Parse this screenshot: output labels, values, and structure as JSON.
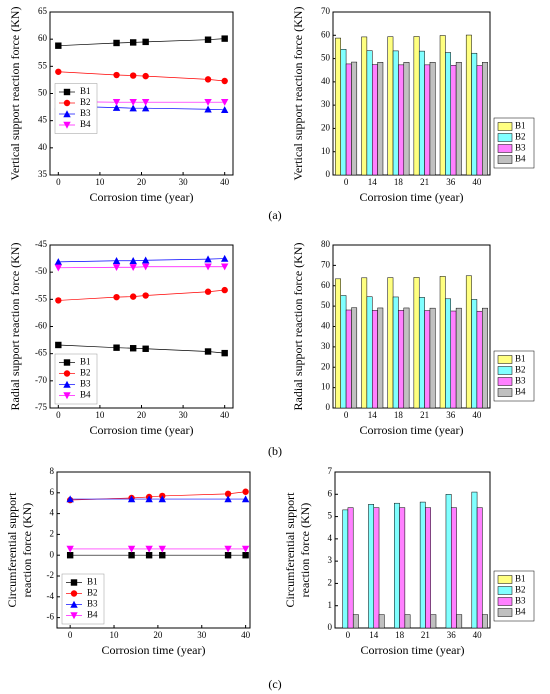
{
  "panel_labels": [
    "(a)",
    "(b)",
    "(c)"
  ],
  "chart_data": [
    {
      "type": "line",
      "ylabel": "Vertical support reaction force (KN)",
      "xlabel": "Corrosion time (year)",
      "x": [
        0,
        14,
        18,
        21,
        36,
        40
      ],
      "xlim": [
        -2,
        42
      ],
      "xticks": [
        0,
        10,
        20,
        30,
        40
      ],
      "ylim": [
        35,
        65
      ],
      "yticks": [
        35,
        40,
        45,
        50,
        55,
        60,
        65
      ],
      "legend": "center left",
      "series": [
        {
          "name": "B1",
          "color": "#000000",
          "marker": "square",
          "values": [
            58.8,
            59.3,
            59.4,
            59.5,
            59.9,
            60.1
          ]
        },
        {
          "name": "B2",
          "color": "#ff0000",
          "marker": "circle",
          "values": [
            54.0,
            53.4,
            53.3,
            53.2,
            52.6,
            52.3
          ]
        },
        {
          "name": "B3",
          "color": "#0000ff",
          "marker": "triangle-up",
          "values": [
            47.7,
            47.4,
            47.3,
            47.3,
            47.1,
            47.0
          ]
        },
        {
          "name": "B4",
          "color": "#ff00ff",
          "marker": "triangle-down",
          "values": [
            48.5,
            48.4,
            48.4,
            48.4,
            48.4,
            48.4
          ]
        }
      ]
    },
    {
      "type": "bar",
      "ylabel": "Vertical support reaction force (KN)",
      "xlabel": "Corrosion time (year)",
      "categories": [
        "0",
        "14",
        "18",
        "21",
        "36",
        "40"
      ],
      "ylim": [
        0,
        70
      ],
      "yticks": [
        0,
        10,
        20,
        30,
        40,
        50,
        60,
        70
      ],
      "legend": "outside lower right",
      "series": [
        {
          "name": "B1",
          "color": "#ffff80",
          "values": [
            58.8,
            59.3,
            59.4,
            59.5,
            59.9,
            60.1
          ]
        },
        {
          "name": "B2",
          "color": "#80ffff",
          "values": [
            54.0,
            53.4,
            53.3,
            53.2,
            52.6,
            52.3
          ]
        },
        {
          "name": "B3",
          "color": "#ff80ff",
          "values": [
            47.7,
            47.4,
            47.3,
            47.3,
            47.1,
            47.0
          ]
        },
        {
          "name": "B4",
          "color": "#c0c0c0",
          "values": [
            48.5,
            48.4,
            48.4,
            48.4,
            48.4,
            48.4
          ]
        }
      ]
    },
    {
      "type": "line",
      "ylabel": "Radial support reaction force (KN)",
      "xlabel": "Corrosion time (year)",
      "x": [
        0,
        14,
        18,
        21,
        36,
        40
      ],
      "xlim": [
        -2,
        42
      ],
      "xticks": [
        0,
        10,
        20,
        30,
        40
      ],
      "ylim": [
        -75,
        -45
      ],
      "yticks": [
        -75,
        -70,
        -65,
        -60,
        -55,
        -50,
        -45
      ],
      "legend": "lower left",
      "series": [
        {
          "name": "B1",
          "color": "#000000",
          "marker": "square",
          "values": [
            -63.4,
            -63.9,
            -64.0,
            -64.1,
            -64.6,
            -64.9
          ]
        },
        {
          "name": "B2",
          "color": "#ff0000",
          "marker": "circle",
          "values": [
            -55.2,
            -54.6,
            -54.5,
            -54.3,
            -53.6,
            -53.3
          ]
        },
        {
          "name": "B3",
          "color": "#0000ff",
          "marker": "triangle-up",
          "values": [
            -48.1,
            -47.9,
            -47.9,
            -47.8,
            -47.6,
            -47.5
          ]
        },
        {
          "name": "B4",
          "color": "#ff00ff",
          "marker": "triangle-down",
          "values": [
            -49.2,
            -49.1,
            -49.1,
            -49.0,
            -49.0,
            -49.0
          ]
        }
      ]
    },
    {
      "type": "bar",
      "ylabel": "Radial support reaction force (KN)",
      "xlabel": "Corrosion time (year)",
      "categories": [
        "0",
        "14",
        "18",
        "21",
        "36",
        "40"
      ],
      "ylim": [
        0,
        80
      ],
      "yticks": [
        0,
        10,
        20,
        30,
        40,
        50,
        60,
        70,
        80
      ],
      "legend": "outside lower right",
      "series": [
        {
          "name": "B1",
          "color": "#ffff80",
          "values": [
            63.4,
            63.9,
            64.0,
            64.1,
            64.6,
            64.9
          ]
        },
        {
          "name": "B2",
          "color": "#80ffff",
          "values": [
            55.2,
            54.6,
            54.5,
            54.3,
            53.6,
            53.3
          ]
        },
        {
          "name": "B3",
          "color": "#ff80ff",
          "values": [
            48.1,
            47.9,
            47.9,
            47.8,
            47.6,
            47.5
          ]
        },
        {
          "name": "B4",
          "color": "#c0c0c0",
          "values": [
            49.2,
            49.1,
            49.1,
            49.0,
            49.0,
            49.0
          ]
        }
      ]
    },
    {
      "type": "line",
      "ylabel": [
        "Circumferential support",
        "reaction force (KN)"
      ],
      "xlabel": "Corrosion time (year)",
      "x": [
        0,
        14,
        18,
        21,
        36,
        40
      ],
      "xlim": [
        -3,
        41
      ],
      "xticks": [
        0,
        10,
        20,
        30,
        40
      ],
      "ylim": [
        -7,
        8
      ],
      "yticks": [
        -6,
        -4,
        -2,
        0,
        2,
        4,
        6,
        8
      ],
      "legend": "lower left",
      "series": [
        {
          "name": "B1",
          "color": "#000000",
          "marker": "square",
          "values": [
            0,
            0,
            0,
            0,
            0,
            0
          ]
        },
        {
          "name": "B2",
          "color": "#ff0000",
          "marker": "circle",
          "values": [
            5.3,
            5.5,
            5.6,
            5.7,
            5.9,
            6.1
          ]
        },
        {
          "name": "B3",
          "color": "#0000ff",
          "marker": "triangle-up",
          "values": [
            5.4,
            5.4,
            5.4,
            5.4,
            5.4,
            5.4
          ]
        },
        {
          "name": "B4",
          "color": "#ff00ff",
          "marker": "triangle-down",
          "values": [
            0.6,
            0.6,
            0.6,
            0.6,
            0.6,
            0.6
          ]
        }
      ]
    },
    {
      "type": "bar",
      "ylabel": [
        "Circumferential support",
        "reaction force (KN)"
      ],
      "xlabel": "Corrosion time (year)",
      "categories": [
        "0",
        "14",
        "18",
        "21",
        "36",
        "40"
      ],
      "ylim": [
        0,
        7
      ],
      "yticks": [
        0,
        1,
        2,
        3,
        4,
        5,
        6,
        7
      ],
      "legend": "outside lower right",
      "series": [
        {
          "name": "B1",
          "color": "#ffff80",
          "values": [
            0,
            0,
            0,
            0,
            0,
            0
          ]
        },
        {
          "name": "B2",
          "color": "#80ffff",
          "values": [
            5.3,
            5.55,
            5.6,
            5.65,
            6.0,
            6.1
          ]
        },
        {
          "name": "B3",
          "color": "#ff80ff",
          "values": [
            5.4,
            5.4,
            5.4,
            5.4,
            5.4,
            5.4
          ]
        },
        {
          "name": "B4",
          "color": "#c0c0c0",
          "values": [
            0.6,
            0.6,
            0.6,
            0.6,
            0.6,
            0.6
          ]
        }
      ]
    }
  ]
}
